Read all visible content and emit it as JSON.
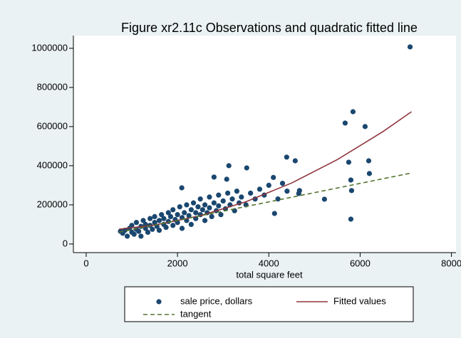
{
  "chart_data": {
    "type": "scatter",
    "title": "Figure xr2.11c Observations and quadratic fitted line",
    "x_label": "total square feet",
    "xlim": [
      -280,
      8100
    ],
    "ylim": [
      -44000,
      1065000
    ],
    "xticks": [
      0,
      2000,
      4000,
      6000,
      8000
    ],
    "yticks": [
      0,
      200000,
      400000,
      600000,
      800000,
      1000000
    ],
    "grid": false,
    "legend": "bottom",
    "series": [
      {
        "name": "sale price, dollars",
        "type": "scatter",
        "color": "#1a476f",
        "x": [
          750,
          800,
          850,
          900,
          950,
          1000,
          1000,
          1050,
          1100,
          1100,
          1150,
          1200,
          1200,
          1250,
          1300,
          1300,
          1350,
          1400,
          1400,
          1450,
          1500,
          1500,
          1550,
          1600,
          1600,
          1650,
          1700,
          1700,
          1750,
          1800,
          1800,
          1850,
          1900,
          1900,
          1950,
          2000,
          2000,
          2050,
          2100,
          2100,
          2150,
          2200,
          2200,
          2250,
          2300,
          2300,
          2350,
          2400,
          2400,
          2450,
          2500,
          2500,
          2550,
          2600,
          2600,
          2650,
          2700,
          2700,
          2750,
          2800,
          2850,
          2900,
          2900,
          2950,
          3000,
          3050,
          3100,
          3150,
          3200,
          3250,
          3300,
          3350,
          3400,
          3500,
          3600,
          3700,
          3800,
          3900,
          4000,
          4100,
          4200,
          4300,
          4400,
          7094,
          5844,
          5672,
          6109,
          6188,
          6203,
          5750,
          5797,
          5813,
          5797,
          5219,
          4672,
          4656,
          4578,
          4391,
          3125,
          3516,
          3078,
          2800,
          2094,
          4125
        ],
        "values": [
          65000,
          55000,
          70000,
          40000,
          80000,
          60000,
          95000,
          50000,
          75000,
          110000,
          65000,
          90000,
          40000,
          120000,
          80000,
          100000,
          60000,
          130000,
          95000,
          75000,
          110000,
          140000,
          90000,
          120000,
          70000,
          150000,
          100000,
          130000,
          85000,
          160000,
          115000,
          140000,
          95000,
          175000,
          125000,
          150000,
          110000,
          190000,
          135000,
          80000,
          160000,
          120000,
          200000,
          145000,
          175000,
          100000,
          210000,
          160000,
          130000,
          190000,
          150000,
          230000,
          175000,
          120000,
          200000,
          160000,
          240000,
          185000,
          140000,
          210000,
          170000,
          250000,
          195000,
          150000,
          220000,
          180000,
          260000,
          200000,
          230000,
          170000,
          270000,
          210000,
          240000,
          200000,
          260000,
          230000,
          280000,
          250000,
          300000,
          340000,
          230000,
          310000,
          270000,
          1007000,
          676000,
          618000,
          600000,
          425000,
          360000,
          418000,
          327000,
          273000,
          127000,
          229000,
          273000,
          258000,
          425000,
          444000,
          400000,
          389000,
          331000,
          342000,
          287000,
          156000
        ]
      },
      {
        "name": "Fitted values",
        "type": "line",
        "color": "#90353b",
        "x": [
          720,
          1500,
          2500,
          3500,
          4500,
          5500,
          6500,
          7125
        ],
        "values": [
          76000,
          96700,
          144400,
          216100,
          311600,
          431000,
          574300,
          675900
        ]
      },
      {
        "name": "tangent",
        "type": "line",
        "dash": true,
        "color": "#55752f",
        "x": [
          720,
          7125
        ],
        "values": [
          60000,
          363000
        ]
      }
    ]
  }
}
